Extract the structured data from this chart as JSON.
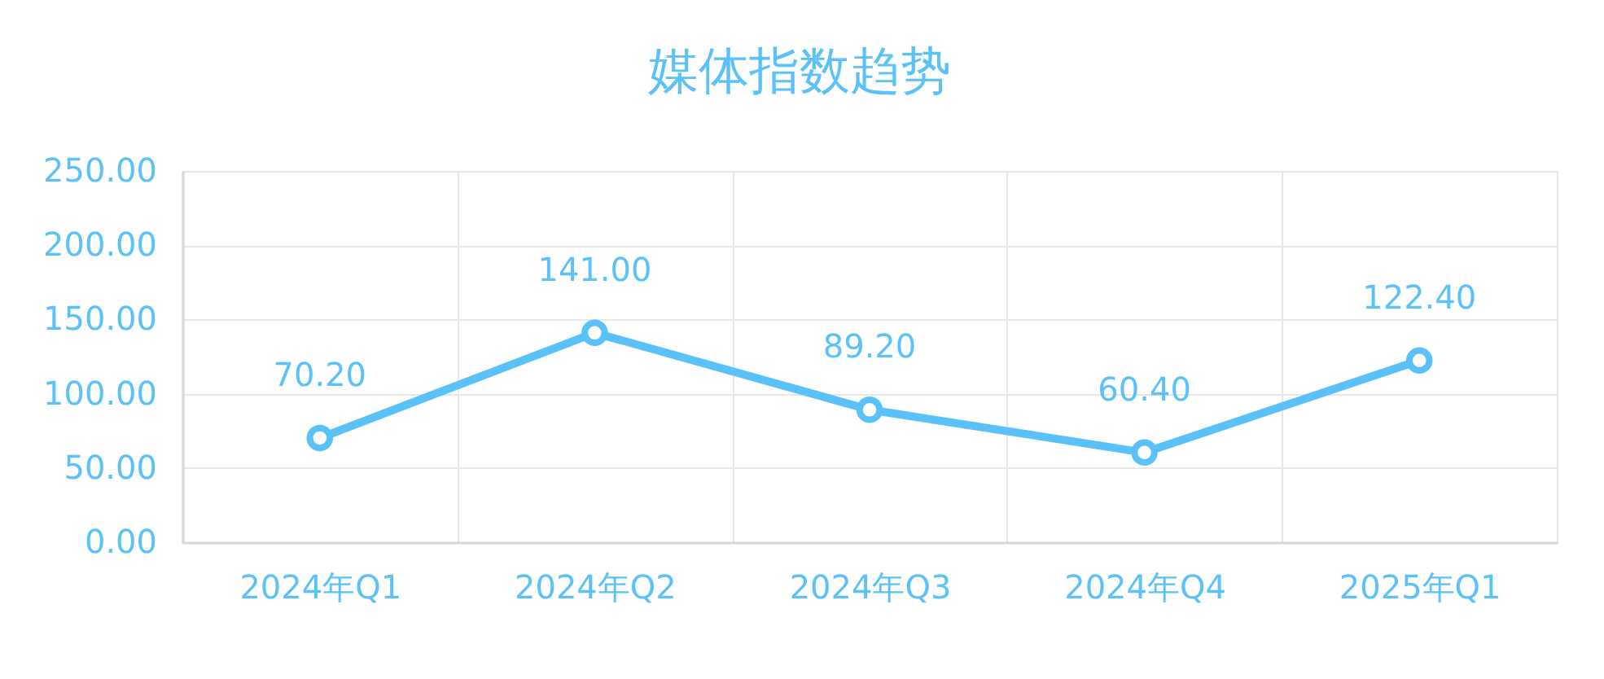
{
  "chart_data": {
    "type": "line",
    "title": "媒体指数趋势",
    "categories": [
      "2024年Q1",
      "2024年Q2",
      "2024年Q3",
      "2024年Q4",
      "2025年Q1"
    ],
    "series": [
      {
        "color": "#5bc2f9",
        "values": [
          70.2,
          141.0,
          89.2,
          60.4,
          122.4
        ],
        "value_labels": [
          "70.20",
          "141.00",
          "89.20",
          "60.40",
          "122.40"
        ]
      }
    ],
    "ylim": [
      0,
      250
    ],
    "yticks": [
      {
        "value": 0,
        "label": "0.00"
      },
      {
        "value": 50,
        "label": "50.00"
      },
      {
        "value": 100,
        "label": "100.00"
      },
      {
        "value": 150,
        "label": "150.00"
      },
      {
        "value": 200,
        "label": "200.00"
      },
      {
        "value": 250,
        "label": "250.00"
      }
    ],
    "grid": true,
    "marker": "circle",
    "line_style": "solid"
  }
}
